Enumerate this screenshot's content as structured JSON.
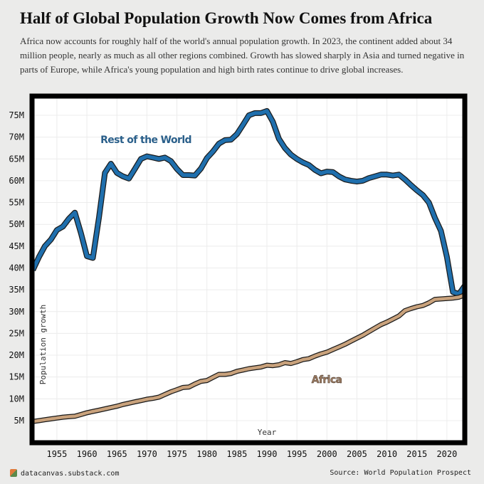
{
  "title": "Half of Global Population Growth Now Comes from Africa",
  "subtitle": "Africa now accounts for roughly half of the world's annual population growth. In 2023, the continent added about 34 million people, nearly as much as all other regions combined. Growth has slowed sharply in Asia and turned negative in parts of Europe, while Africa's young population and high birth rates continue to drive global increases.",
  "footer": {
    "site": "datacanvas.substack.com",
    "source": "Source: World Population Prospect"
  },
  "chart_data": {
    "type": "line",
    "xlabel": "Year",
    "ylabel": "Population growth",
    "xlim": [
      1950,
      2023.5
    ],
    "ylim": [
      0,
      80
    ],
    "grid": true,
    "x_ticks": [
      "1955",
      "1960",
      "1965",
      "1970",
      "1975",
      "1980",
      "1985",
      "1990",
      "1995",
      "2000",
      "2005",
      "2010",
      "2015",
      "2020"
    ],
    "y_ticks": [
      "5M",
      "10M",
      "15M",
      "20M",
      "25M",
      "30M",
      "35M",
      "40M",
      "45M",
      "50M",
      "55M",
      "60M",
      "65M",
      "70M",
      "75M"
    ],
    "x_start": 1951,
    "units": "millions",
    "series": [
      {
        "name": "Rest of the World",
        "color": "#1f6fad",
        "label_color": "#2a5f8a",
        "values": [
          39.5,
          42.5,
          45,
          46.5,
          48.7,
          49.5,
          51.3,
          52.7,
          48,
          42.7,
          42.3,
          51.5,
          61.8,
          63.9,
          61.8,
          61,
          60.5,
          62.7,
          65,
          65.6,
          65.3,
          65,
          65.3,
          64.5,
          62.7,
          61.3,
          61.3,
          61.2,
          62.8,
          65.2,
          66.7,
          68.5,
          69.3,
          69.4,
          70.7,
          72.8,
          75,
          75.5,
          75.5,
          76,
          73.5,
          69.6,
          67.5,
          66,
          65,
          64.2,
          63.6,
          62.5,
          61.7,
          62.1,
          62,
          61,
          60.3,
          60,
          59.8,
          60,
          60.6,
          61,
          61.4,
          61.4,
          61.2,
          61.4,
          60.3,
          59,
          57.8,
          56.7,
          55,
          51.5,
          48.5,
          42.5,
          34.5,
          34,
          36
        ]
      },
      {
        "name": "Africa",
        "color": "#c9a27c",
        "label_color": "#9a7a60",
        "values": [
          4.8,
          5.0,
          5.2,
          5.4,
          5.6,
          5.8,
          5.9,
          6.0,
          6.4,
          6.8,
          7.1,
          7.4,
          7.7,
          8.0,
          8.3,
          8.7,
          9.0,
          9.3,
          9.6,
          9.9,
          10.1,
          10.4,
          11.0,
          11.6,
          12.1,
          12.6,
          12.7,
          13.4,
          14.0,
          14.2,
          14.9,
          15.6,
          15.6,
          15.8,
          16.3,
          16.6,
          16.9,
          17.1,
          17.3,
          17.7,
          17.6,
          17.8,
          18.3,
          18.1,
          18.5,
          19.0,
          19.2,
          19.8,
          20.3,
          20.7,
          21.3,
          21.9,
          22.5,
          23.2,
          23.9,
          24.6,
          25.4,
          26.2,
          27.0,
          27.6,
          28.3,
          29.0,
          30.2,
          30.7,
          31.1,
          31.4,
          32.0,
          32.8,
          32.9,
          33.0,
          33.1,
          33.3,
          33.8
        ]
      }
    ]
  }
}
